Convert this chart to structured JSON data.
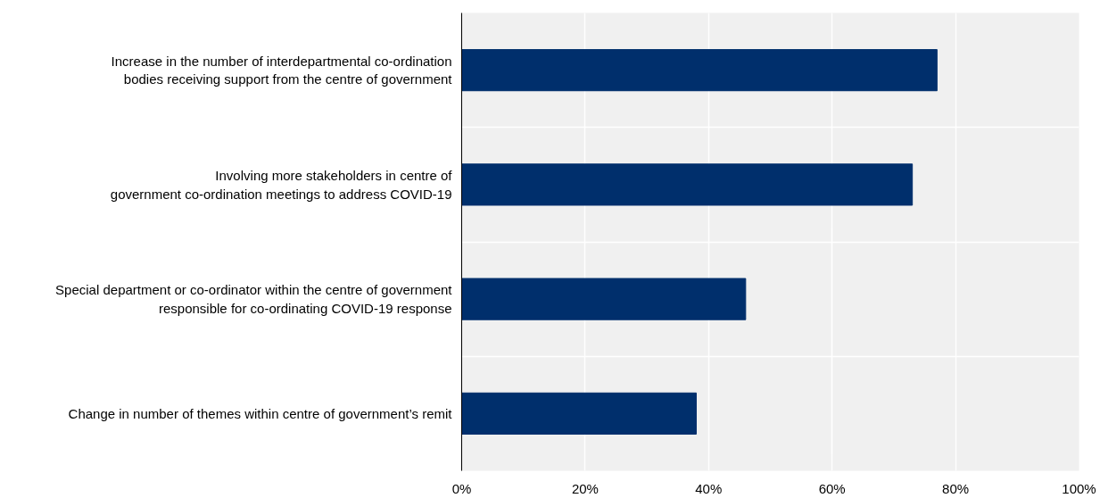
{
  "chart_data": {
    "type": "bar",
    "orientation": "horizontal",
    "categories": [
      "Increase in the number of interdepartmental co-ordination\nbodies receiving support from the centre of government",
      "Involving more stakeholders in centre of\ngovernment co-ordination meetings to address COVID-19",
      "Special department or co-ordinator within the centre of government\nresponsible for co-ordinating COVID-19 response",
      "Change in number of themes within centre of government’s remit"
    ],
    "values": [
      77,
      73,
      46,
      38
    ],
    "color": "#002f6c",
    "xlim": [
      0,
      100
    ],
    "xticks": [
      {
        "value": 0,
        "label": "0%"
      },
      {
        "value": 20,
        "label": "20%"
      },
      {
        "value": 40,
        "label": "40%"
      },
      {
        "value": 60,
        "label": "60%"
      },
      {
        "value": 80,
        "label": "80%"
      },
      {
        "value": 100,
        "label": "100%"
      }
    ],
    "grid": true
  }
}
